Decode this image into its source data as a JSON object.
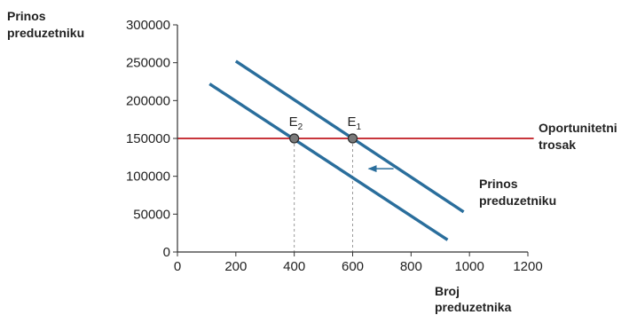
{
  "chart_data": {
    "type": "line",
    "ylabel": [
      "Prinos",
      "preduzetniku"
    ],
    "xlabel": [
      "Broj",
      "preduzetnika"
    ],
    "xlim": [
      0,
      1200
    ],
    "ylim": [
      0,
      300000
    ],
    "xticks": [
      0,
      200,
      400,
      600,
      800,
      1000,
      1200
    ],
    "yticks": [
      0,
      50000,
      100000,
      150000,
      200000,
      250000,
      300000
    ],
    "grid": false,
    "series": [
      {
        "key": "return_initial",
        "color": "#2a6e9c",
        "points": [
          [
            200,
            252000
          ],
          [
            980,
            53000
          ]
        ]
      },
      {
        "key": "return_shifted",
        "color": "#2a6e9c",
        "points": [
          [
            110,
            222000
          ],
          [
            925,
            16000
          ]
        ]
      },
      {
        "key": "opportunity_cost",
        "name": [
          "Oportunitetni",
          "trosak"
        ],
        "color": "#c8363c",
        "points": [
          [
            0,
            150000
          ],
          [
            1220,
            150000
          ]
        ]
      }
    ],
    "series_label": {
      "text": [
        "Prinos",
        "preduzetniku"
      ]
    },
    "equilibria": [
      {
        "label": "E",
        "sub": "2",
        "x": 400,
        "y": 150000
      },
      {
        "label": "E",
        "sub": "1",
        "x": 600,
        "y": 150000
      }
    ],
    "shift_arrow": {
      "from_x": 740,
      "to_x": 655,
      "y": 110000,
      "color": "#2a6e9c"
    }
  }
}
